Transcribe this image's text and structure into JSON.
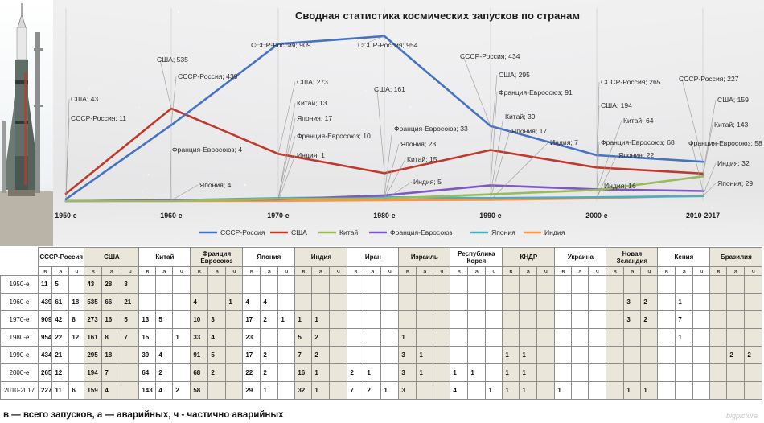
{
  "watermark": "bigpicture",
  "footnote": "в — всего запусков, а — аварийных, ч - частично аварийных",
  "chart_data": {
    "type": "line",
    "title": "Сводная статистика космических запусков по странам",
    "categories": [
      "1950-е",
      "1960-е",
      "1970-е",
      "1980-е",
      "1990-е",
      "2000-е",
      "2010-2017"
    ],
    "ylim": [
      0,
      1000
    ],
    "grid": false,
    "legend_position": "bottom",
    "series": [
      {
        "name": "СССР-Россия",
        "color": "#4472c4",
        "values": [
          11,
          439,
          909,
          954,
          434,
          265,
          227
        ]
      },
      {
        "name": "США",
        "color": "#c0392b",
        "values": [
          43,
          535,
          273,
          161,
          295,
          194,
          159
        ]
      },
      {
        "name": "Китай",
        "color": "#9bbb59",
        "values": [
          0,
          0,
          13,
          15,
          39,
          64,
          143
        ]
      },
      {
        "name": "Франция-Евросоюз",
        "color": "#7e57c2",
        "values": [
          0,
          4,
          10,
          33,
          91,
          68,
          58
        ]
      },
      {
        "name": "Япония",
        "color": "#4bacc6",
        "values": [
          0,
          4,
          17,
          23,
          17,
          22,
          29
        ]
      },
      {
        "name": "Индия",
        "color": "#f79646",
        "values": [
          0,
          0,
          1,
          5,
          7,
          16,
          32
        ]
      }
    ],
    "annotations": [
      {
        "text": "США; 43",
        "cat": 0
      },
      {
        "text": "СССР-Россия; 11",
        "cat": 0
      },
      {
        "text": "США; 535",
        "cat": 1
      },
      {
        "text": "СССР-Россия; 439",
        "cat": 1
      },
      {
        "text": "Франция-Евросоюз; 4",
        "cat": 1
      },
      {
        "text": "Япония; 4",
        "cat": 1
      },
      {
        "text": "СССР-Россия; 909",
        "cat": 2
      },
      {
        "text": "США; 273",
        "cat": 2
      },
      {
        "text": "Китай; 13",
        "cat": 2
      },
      {
        "text": "Япония; 17",
        "cat": 2
      },
      {
        "text": "Франция-Евросоюз; 10",
        "cat": 2
      },
      {
        "text": "Индия; 1",
        "cat": 2
      },
      {
        "text": "СССР-Россия; 954",
        "cat": 3
      },
      {
        "text": "США; 161",
        "cat": 3
      },
      {
        "text": "Франция-Евросоюз; 33",
        "cat": 3
      },
      {
        "text": "Япония; 23",
        "cat": 3
      },
      {
        "text": "Китай; 15",
        "cat": 3
      },
      {
        "text": "Индия; 5",
        "cat": 3
      },
      {
        "text": "СССР-Россия; 434",
        "cat": 4
      },
      {
        "text": "США; 295",
        "cat": 4
      },
      {
        "text": "Франция-Евросоюз; 91",
        "cat": 4
      },
      {
        "text": "Китай; 39",
        "cat": 4
      },
      {
        "text": "Япония; 17",
        "cat": 4
      },
      {
        "text": "Индия; 7",
        "cat": 4
      },
      {
        "text": "СССР-Россия; 265",
        "cat": 5
      },
      {
        "text": "США; 194",
        "cat": 5
      },
      {
        "text": "Китай; 64",
        "cat": 5
      },
      {
        "text": "Франция-Евросоюз; 68",
        "cat": 5
      },
      {
        "text": "Япония; 22",
        "cat": 5
      },
      {
        "text": "Индия; 16",
        "cat": 5
      },
      {
        "text": "СССР-Россия; 227",
        "cat": 6
      },
      {
        "text": "США; 159",
        "cat": 6
      },
      {
        "text": "Китай; 143",
        "cat": 6
      },
      {
        "text": "Франция-Евросоюз; 58",
        "cat": 6
      },
      {
        "text": "Индия; 32",
        "cat": 6
      },
      {
        "text": "Япония; 29",
        "cat": 6
      }
    ]
  },
  "table": {
    "countries": [
      "СССР-Россия",
      "США",
      "Китай",
      "Франция\nЕвросоюз",
      "Япония",
      "Индия",
      "Иран",
      "Израиль",
      "Республика\nКорея",
      "КНДР",
      "Украина",
      "Новая\nЗеландия",
      "Кения",
      "Бразилия"
    ],
    "subheaders": [
      "в",
      "а",
      "ч"
    ],
    "rows": [
      {
        "period": "1950-е",
        "cells": [
          "11",
          "5",
          "",
          "43",
          "28",
          "3",
          "",
          "",
          "",
          "",
          "",
          "",
          "",
          "",
          "",
          "",
          "",
          "",
          "",
          "",
          "",
          "",
          "",
          "",
          "",
          "",
          "",
          "",
          "",
          "",
          "",
          "",
          "",
          "",
          "",
          "",
          "",
          "",
          "",
          "",
          "",
          ""
        ]
      },
      {
        "period": "1960-е",
        "cells": [
          "439",
          "61",
          "18",
          "535",
          "66",
          "21",
          "",
          "",
          "",
          "4",
          "",
          "1",
          "4",
          "4",
          "",
          "",
          "",
          "",
          "",
          "",
          "",
          "",
          "",
          "",
          "",
          "",
          "",
          "",
          "",
          "",
          "",
          "",
          "",
          "",
          "3",
          "2",
          "",
          "1",
          "",
          "",
          "",
          ""
        ]
      },
      {
        "period": "1970-е",
        "cells": [
          "909",
          "42",
          "8",
          "273",
          "16",
          "5",
          "13",
          "5",
          "",
          "10",
          "3",
          "",
          "17",
          "2",
          "1",
          "1",
          "1",
          "",
          "",
          "",
          "",
          "",
          "",
          "",
          "",
          "",
          "",
          "",
          "",
          "",
          "",
          "",
          "",
          "",
          "3",
          "2",
          "",
          "7",
          "",
          "",
          "",
          ""
        ]
      },
      {
        "period": "1980-е",
        "cells": [
          "954",
          "22",
          "12",
          "161",
          "8",
          "7",
          "15",
          "",
          "1",
          "33",
          "4",
          "",
          "23",
          "",
          "",
          "5",
          "2",
          "",
          "",
          "",
          "",
          "1",
          "",
          "",
          "",
          "",
          "",
          "",
          "",
          "",
          "",
          "",
          "",
          "",
          "",
          "",
          "",
          "1",
          "",
          "",
          "",
          ""
        ]
      },
      {
        "period": "1990-е",
        "cells": [
          "434",
          "21",
          "",
          "295",
          "18",
          "",
          "39",
          "4",
          "",
          "91",
          "5",
          "",
          "17",
          "2",
          "",
          "7",
          "2",
          "",
          "",
          "",
          "",
          "3",
          "1",
          "",
          "",
          "",
          "",
          "1",
          "1",
          "",
          "",
          "",
          "",
          "",
          "",
          "",
          "",
          "",
          "",
          "",
          "2",
          "2"
        ]
      },
      {
        "period": "2000-е",
        "cells": [
          "265",
          "12",
          "",
          "194",
          "7",
          "",
          "64",
          "2",
          "",
          "68",
          "2",
          "",
          "22",
          "2",
          "",
          "16",
          "1",
          "",
          "2",
          "1",
          "",
          "3",
          "1",
          "",
          "1",
          "1",
          "",
          "1",
          "1",
          "",
          "",
          "",
          "",
          "",
          "",
          "",
          "",
          "",
          "",
          "",
          "",
          ""
        ]
      },
      {
        "period": "2010-2017",
        "cells": [
          "227",
          "11",
          "6",
          "159",
          "4",
          "",
          "143",
          "4",
          "2",
          "58",
          "",
          "",
          "29",
          "1",
          "",
          "32",
          "1",
          "",
          "7",
          "2",
          "1",
          "3",
          "",
          "",
          "4",
          "",
          "1",
          "1",
          "1",
          "",
          "1",
          "",
          "",
          "",
          "1",
          "1",
          "",
          "",
          "",
          "",
          "",
          ""
        ]
      }
    ]
  }
}
